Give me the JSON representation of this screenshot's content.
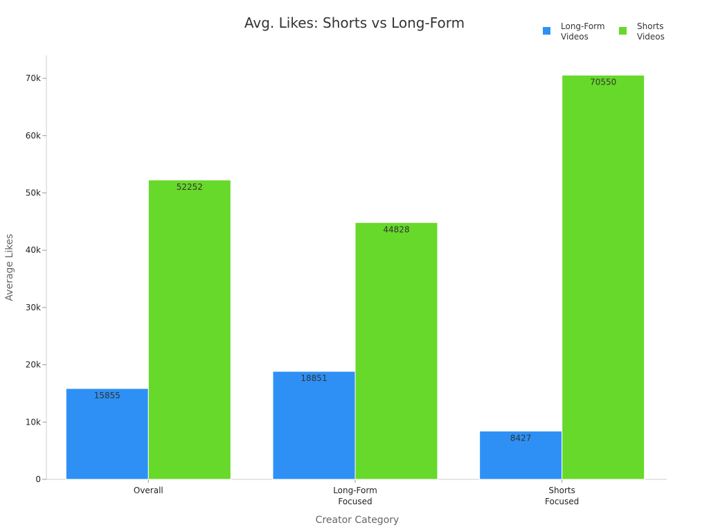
{
  "chart_data": {
    "type": "bar",
    "title": "Avg. Likes: Shorts vs Long-Form",
    "xlabel": "Creator Category",
    "ylabel": "Average Likes",
    "categories": [
      [
        "Overall"
      ],
      [
        "Long-Form",
        "Focused"
      ],
      [
        "Shorts",
        "Focused"
      ]
    ],
    "series": [
      {
        "name": [
          "Long-Form",
          "Videos"
        ],
        "color": "#2e90f5",
        "values": [
          15855,
          18851,
          8427
        ]
      },
      {
        "name": [
          "Shorts",
          "Videos"
        ],
        "color": "#66d92a",
        "values": [
          52252,
          44828,
          70550
        ]
      }
    ],
    "ylim": [
      0,
      74000
    ],
    "yticks": [
      0,
      10000,
      20000,
      30000,
      40000,
      50000,
      60000,
      70000
    ],
    "ytick_labels": [
      "0",
      "10k",
      "20k",
      "30k",
      "40k",
      "50k",
      "60k",
      "70k"
    ],
    "grid": false,
    "legend_position": "top-right"
  }
}
